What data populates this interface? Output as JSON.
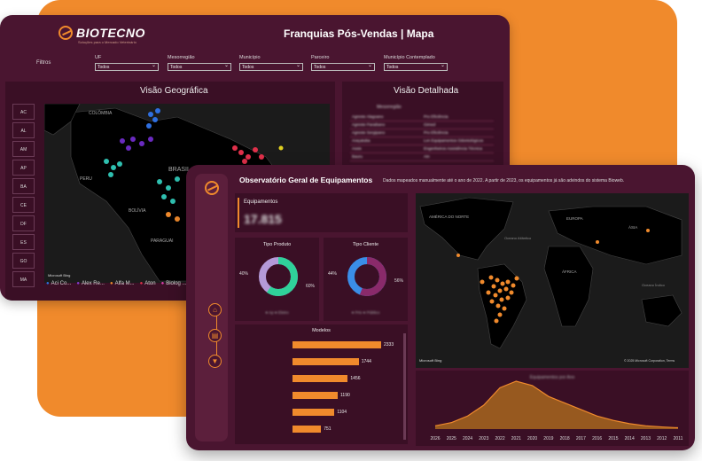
{
  "brand": {
    "name": "BIOTECNO",
    "tagline": "Soluções para o Mercado Veterinário"
  },
  "back_window": {
    "title": "Franquias Pós-Vendas | Mapa",
    "filters_label": "Filtros",
    "filters": [
      {
        "label": "UF",
        "value": "Todos"
      },
      {
        "label": "Mesorregião",
        "value": "Todos"
      },
      {
        "label": "Município",
        "value": "Todos"
      },
      {
        "label": "Parceiro",
        "value": "Todos"
      },
      {
        "label": "Município Contemplado",
        "value": "Todos"
      }
    ],
    "geo_title": "Visão Geográfica",
    "detail_title": "Visão Detalhada",
    "states": [
      "AC",
      "AL",
      "AM",
      "AP",
      "BA",
      "CE",
      "DF",
      "ES",
      "GO",
      "MA"
    ],
    "map_labels": [
      "COLÔMBIA",
      "BRASIL",
      "PERU",
      "BOLÍVIA",
      "PARAGUAI"
    ],
    "map_credit": "Microsoft Bing",
    "legend": [
      {
        "name": "Aci Co...",
        "color": "#2f6fe0"
      },
      {
        "name": "Alex Re...",
        "color": "#8a3ad0"
      },
      {
        "name": "Alfa M...",
        "color": "#f08a2c"
      },
      {
        "name": "Aton",
        "color": "#e0304a"
      },
      {
        "name": "Biolog ...",
        "color": "#e040b0"
      }
    ],
    "table_header": "Mesorregião",
    "table_rows": [
      [
        "Agreste Alagoano",
        "Pro Eficiência"
      ],
      [
        "Agreste Paraibano",
        "Gimed"
      ],
      [
        "Agreste Sergipano",
        "Pro Eficiência"
      ],
      [
        "Araçatuba",
        "Lvn Equipamentos Odontológicos"
      ],
      [
        "Assis",
        "Engenheiros Assistência Técnica"
      ],
      [
        "Bauru",
        "Atn"
      ]
    ]
  },
  "front_window": {
    "title": "Observatório Geral de Equipamentos",
    "subtitle": "Dados mapeados manualmente até o ano de 2022. A partir de 2023, os equipamentos já são advindos do sistema Bioweb.",
    "kpi_label": "Equipamentos",
    "kpi_value": "17.815",
    "nav_icons": [
      "home-icon",
      "clipboard-icon",
      "filter-icon"
    ],
    "donut_product": {
      "title": "Tipo Produto",
      "left_pct": "40%",
      "right_pct": "60%",
      "legend": "● Ap ● Eletro"
    },
    "donut_client": {
      "title": "Tipo Cliente",
      "left_pct": "44%",
      "right_pct": "56%",
      "legend": "● Priv ● Público"
    },
    "map_labels": [
      "AMÉRICA DO NORTE",
      "Oceano Atlântico",
      "EUROPA",
      "ÁFRICA",
      "ÁSIA",
      "Oceano Índico"
    ],
    "map_credit": "Microsoft Bing",
    "map_copyright": "© 2025 Microsoft Corporation, Terms",
    "area_title": "Equipamentos por Ano"
  },
  "colors": {
    "bg_dark": "#4a1530",
    "panel": "#3a0f25",
    "accent": "#f08a2c",
    "donut_green": "#2fd29a",
    "donut_lilac": "#b49ad8",
    "donut_blue": "#3a8ee8",
    "donut_purple": "#8a2a6a"
  },
  "chart_data": [
    {
      "type": "bar",
      "title": "Modelos",
      "categories": [
        "",
        "",
        "",
        "",
        "",
        ""
      ],
      "values": [
        2333,
        1744,
        1456,
        1190,
        1104,
        751
      ]
    },
    {
      "type": "pie",
      "title": "Tipo Produto",
      "values": [
        60,
        40
      ]
    },
    {
      "type": "pie",
      "title": "Tipo Cliente",
      "values": [
        56,
        44
      ]
    },
    {
      "type": "area",
      "x": [
        "2026",
        "2025",
        "2024",
        "2023",
        "2022",
        "2021",
        "2020",
        "2019",
        "2018",
        "2017",
        "2016",
        "2015",
        "2014",
        "2013",
        "2012",
        "2011"
      ],
      "values": [
        150,
        300,
        600,
        1100,
        1900,
        2200,
        2000,
        1500,
        1200,
        900,
        600,
        400,
        250,
        150,
        100,
        60
      ]
    }
  ]
}
